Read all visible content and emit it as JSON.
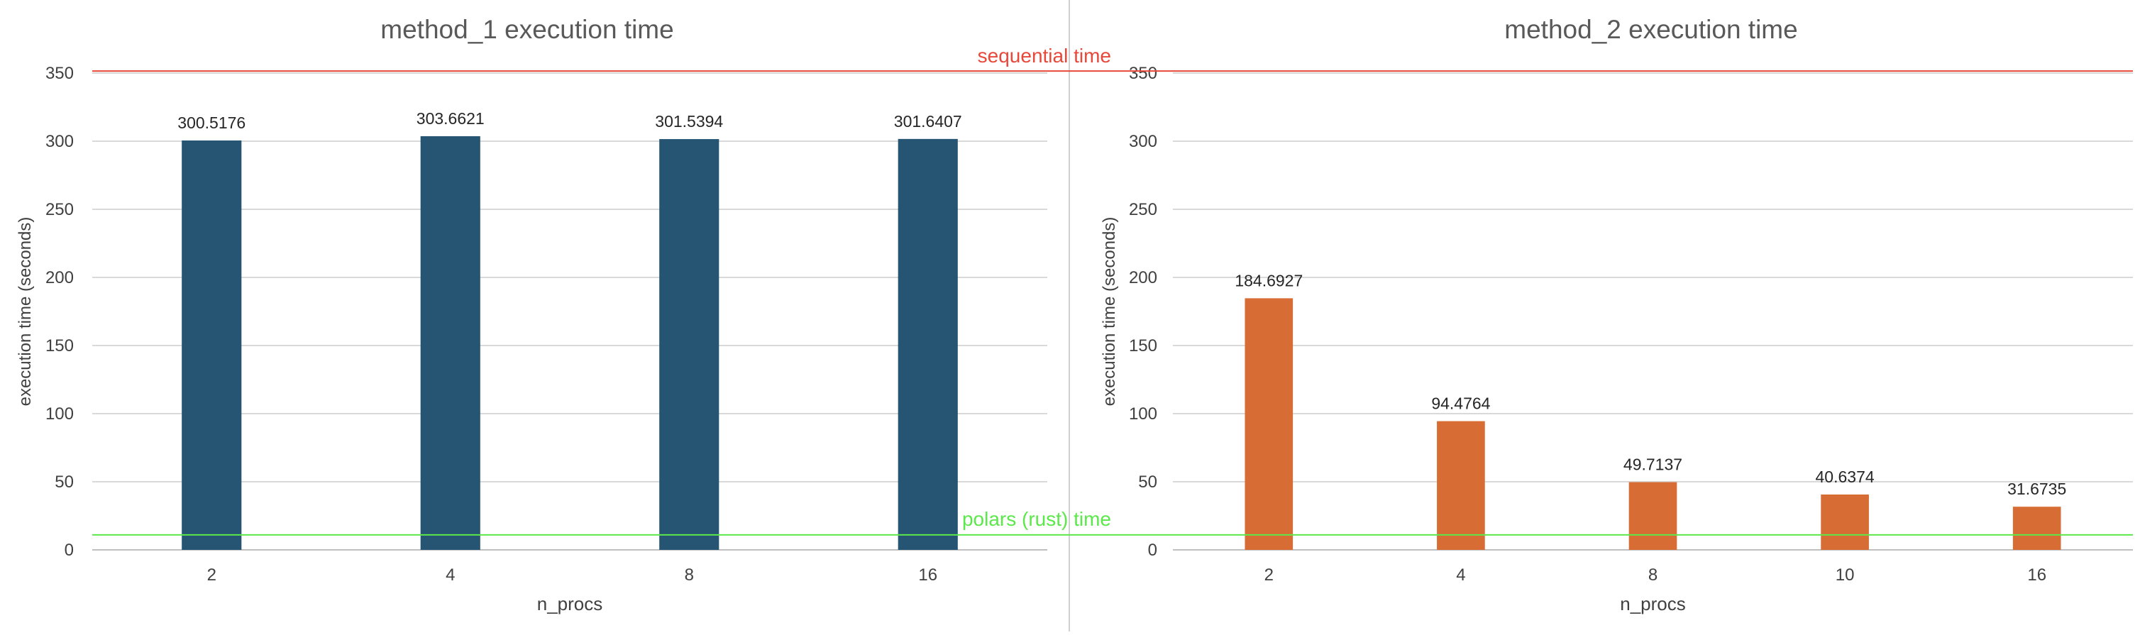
{
  "chart_data": [
    {
      "type": "bar",
      "title": "method_1 execution time",
      "xlabel": "n_procs",
      "ylabel": "execution time (seconds)",
      "categories": [
        "2",
        "4",
        "8",
        "16"
      ],
      "values": [
        300.5176,
        303.6621,
        301.5394,
        301.6407
      ],
      "value_labels": [
        "300.5176",
        "303.6621",
        "301.5394",
        "301.6407"
      ],
      "ylim": [
        0,
        350
      ],
      "yticks": [
        0,
        50,
        100,
        150,
        200,
        250,
        300,
        350
      ],
      "grid": true,
      "bar_color": "#255573"
    },
    {
      "type": "bar",
      "title": "method_2 execution time",
      "xlabel": "n_procs",
      "ylabel": "execution time (seconds)",
      "categories": [
        "2",
        "4",
        "8",
        "10",
        "16"
      ],
      "values": [
        184.6927,
        94.4764,
        49.7137,
        40.6374,
        31.6735
      ],
      "value_labels": [
        "184.6927",
        "94.4764",
        "49.7137",
        "40.6374",
        "31.6735"
      ],
      "ylim": [
        0,
        350
      ],
      "yticks": [
        0,
        50,
        100,
        150,
        200,
        250,
        300,
        350
      ],
      "grid": true,
      "bar_color": "#D76D34"
    }
  ],
  "reference_lines": [
    {
      "label": "sequential time",
      "value": 351.5,
      "color": "#E8483A"
    },
    {
      "label": "polars (rust) time",
      "value": 11,
      "color": "#5BE84A"
    }
  ],
  "colors": {
    "grid": "#d9d9d9",
    "axis": "#bfbfbf",
    "text": "#404040",
    "title": "#595959",
    "divider": "#d0d0d0"
  }
}
